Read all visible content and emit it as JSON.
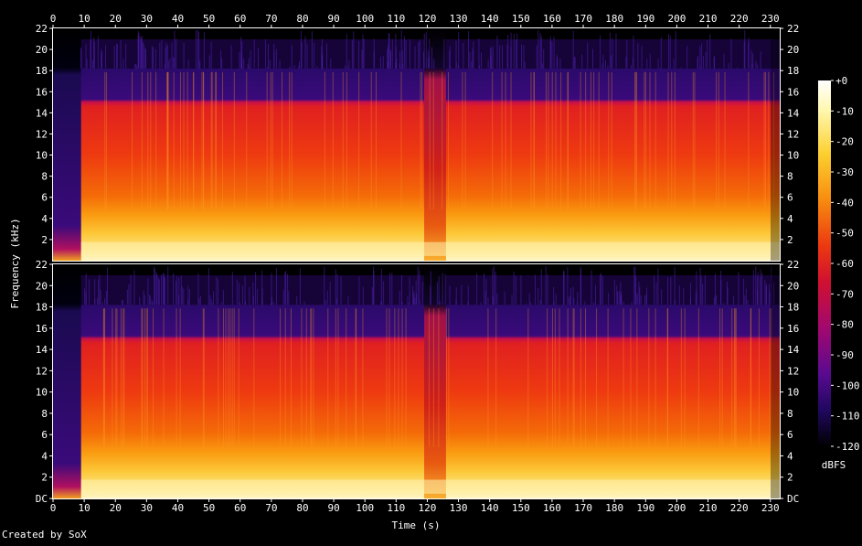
{
  "chart_data": {
    "type": "heatmap",
    "title": "",
    "xlabel": "Time (s)",
    "ylabel": "Frequency (kHz)",
    "xlim": [
      0,
      233
    ],
    "ylim": [
      0,
      22
    ],
    "x_ticks": [
      0,
      10,
      20,
      30,
      40,
      50,
      60,
      70,
      80,
      90,
      100,
      110,
      120,
      130,
      140,
      150,
      160,
      170,
      180,
      190,
      200,
      210,
      220,
      230
    ],
    "y_tick_labels_upper": [
      "22",
      "20",
      "18",
      "16",
      "14",
      "12",
      "10",
      "8",
      "6",
      "4",
      "2"
    ],
    "y_tick_labels_lower": [
      "22",
      "20",
      "18",
      "16",
      "14",
      "12",
      "10",
      "8",
      "6",
      "4",
      "2",
      "DC"
    ],
    "y_tick_values_upper": [
      22,
      20,
      18,
      16,
      14,
      12,
      10,
      8,
      6,
      4,
      2
    ],
    "y_tick_values_lower": [
      22,
      20,
      18,
      16,
      14,
      12,
      10,
      8,
      6,
      4,
      2,
      0
    ],
    "channels": 2,
    "colorbar": {
      "unit": "dBFS",
      "ticks": [
        "+0",
        "-10",
        "-20",
        "-30",
        "-40",
        "-50",
        "-60",
        "-70",
        "-80",
        "-90",
        "-100",
        "-110",
        "-120"
      ],
      "range": [
        -120,
        0
      ]
    },
    "features": {
      "silent_intro_end_s": 9,
      "lowpass_cutoff_khz": 18.2,
      "dip_start_s": 119,
      "dip_end_s": 126,
      "loud_start_s": 16
    }
  },
  "footer": {
    "credit": "Created by SoX"
  }
}
